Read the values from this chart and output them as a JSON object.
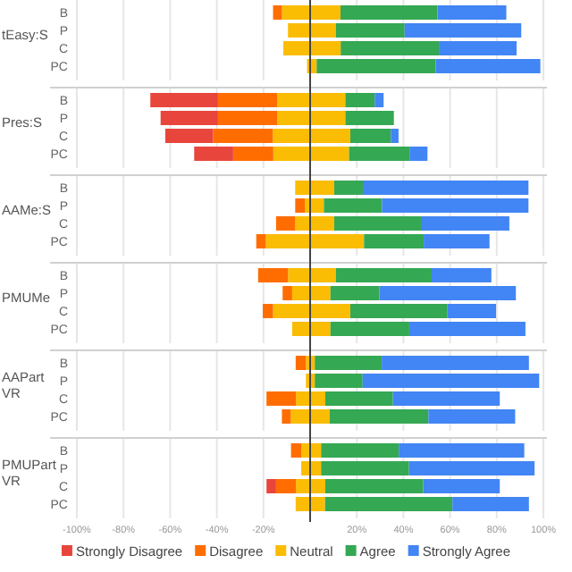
{
  "chart_data": [
    {
      "type": "bar",
      "orientation": "horizontal",
      "stacked": true,
      "ylabel": "tEasy:S",
      "categories": [
        "B",
        "P",
        "C",
        "PC"
      ],
      "xlim": [
        -100,
        100
      ],
      "grid": "x",
      "tick_labels": "y",
      "series": [
        {
          "color": "#fbbc04",
          "values": [
            -12.1,
            -9.5,
            -11.5,
            -1.3
          ]
        },
        {
          "color": "#ff6d01",
          "values": [
            -3.8,
            null,
            null,
            null
          ]
        },
        {
          "color": "#fbbc04",
          "values": [
            13,
            11,
            13.1,
            2.8
          ]
        },
        {
          "color": "#34a853",
          "values": [
            41.6,
            29.5,
            42.1,
            51
          ]
        },
        {
          "color": "#4285f4",
          "values": [
            29.5,
            50,
            33.3,
            44.9
          ]
        }
      ]
    },
    {
      "type": "bar",
      "orientation": "horizontal",
      "stacked": true,
      "ylabel": "Pres:S",
      "categories": [
        "B",
        "P",
        "C",
        "PC"
      ],
      "xlim": [
        -100,
        100
      ],
      "grid": "x",
      "tick_labels": "y",
      "series": [
        {
          "color": "#fbbc04",
          "values": [
            -14.1,
            -14.1,
            -16,
            -15.8
          ]
        },
        {
          "color": "#ff6d01",
          "values": [
            -25.4,
            -25.4,
            -25.6,
            -17.2
          ]
        },
        {
          "color": "#e8453c",
          "values": [
            -29,
            -24.6,
            -20.5,
            -16.7
          ]
        },
        {
          "color": "#fbbc04",
          "values": [
            15.1,
            15.1,
            17.2,
            16.7
          ]
        },
        {
          "color": "#34a853",
          "values": [
            12.6,
            20.8,
            17.4,
            25.9
          ]
        },
        {
          "color": "#4285f4",
          "values": [
            3.8,
            null,
            3.3,
            7.7
          ]
        }
      ]
    },
    {
      "type": "bar",
      "orientation": "horizontal",
      "stacked": true,
      "ylabel": "AAMe:S",
      "categories": [
        "B",
        "P",
        "C",
        "PC"
      ],
      "xlim": [
        -100,
        100
      ],
      "grid": "x",
      "tick_labels": "y",
      "series": [
        {
          "color": "#fbbc04",
          "values": [
            -6.4,
            -2.3,
            -6.4,
            -19
          ]
        },
        {
          "color": "#ff6d01",
          "values": [
            null,
            -4.1,
            -8.2,
            -4.1
          ]
        },
        {
          "color": "#fbbc04",
          "values": [
            10.3,
            5.9,
            10.3,
            23.1
          ]
        },
        {
          "color": "#34a853",
          "values": [
            12.3,
            24.9,
            37.2,
            25.6
          ]
        },
        {
          "color": "#4285f4",
          "values": [
            71,
            62.8,
            37.9,
            28.2
          ]
        }
      ]
    },
    {
      "type": "bar",
      "orientation": "horizontal",
      "stacked": true,
      "ylabel": "PMUMe",
      "categories": [
        "B",
        "P",
        "C",
        "PC"
      ],
      "xlim": [
        -100,
        100
      ],
      "grid": "x",
      "tick_labels": "y",
      "series": [
        {
          "color": "#fbbc04",
          "values": [
            -9.5,
            -7.7,
            -15.9,
            -7.7
          ]
        },
        {
          "color": "#ff6d01",
          "values": [
            -12.8,
            -4.1,
            -4.4,
            null
          ]
        },
        {
          "color": "#fbbc04",
          "values": [
            11,
            8.7,
            17.2,
            8.7
          ]
        },
        {
          "color": "#34a853",
          "values": [
            41.1,
            21,
            41.7,
            33.8
          ]
        },
        {
          "color": "#4285f4",
          "values": [
            25.6,
            58.5,
            20.8,
            49.8
          ]
        }
      ]
    },
    {
      "type": "bar",
      "orientation": "horizontal",
      "stacked": true,
      "ylabel": "AAPart VR",
      "categories": [
        "B",
        "P",
        "C",
        "PC"
      ],
      "xlim": [
        -100,
        100
      ],
      "grid": "x",
      "tick_labels": "y",
      "series": [
        {
          "color": "#fbbc04",
          "values": [
            -1.8,
            -1.8,
            -6.1,
            -8.3
          ]
        },
        {
          "color": "#ff6d01",
          "values": [
            -4.4,
            null,
            -12.6,
            -3.8
          ]
        },
        {
          "color": "#fbbc04",
          "values": [
            2,
            2,
            6.5,
            8.4
          ]
        },
        {
          "color": "#34a853",
          "values": [
            28.7,
            20.5,
            29,
            42.3
          ]
        },
        {
          "color": "#4285f4",
          "values": [
            63.1,
            75.7,
            45.8,
            37.2
          ]
        }
      ]
    },
    {
      "type": "bar",
      "orientation": "horizontal",
      "stacked": true,
      "ylabel": "PMUPart VR",
      "categories": [
        "B",
        "P",
        "C",
        "PC"
      ],
      "xlim": [
        -100,
        100
      ],
      "xticks": [
        {
          "value": -100,
          "label": "-100%"
        },
        {
          "value": -80,
          "label": "-80%"
        },
        {
          "value": -60,
          "label": "-60%"
        },
        {
          "value": -40,
          "label": "-40%"
        },
        {
          "value": -20,
          "label": "-20%"
        },
        {
          "value": 0,
          "label": null
        },
        {
          "value": 20,
          "label": "20%"
        },
        {
          "value": 40,
          "label": "40%"
        },
        {
          "value": 60,
          "label": "60%"
        },
        {
          "value": 80,
          "label": "80%"
        },
        {
          "value": 100,
          "label": "100%"
        }
      ],
      "grid": "x",
      "legend": "bottom",
      "series": [
        {
          "name": "Neutral",
          "color": "#fbbc04",
          "values": [
            -3.8,
            -3.8,
            -6.1,
            -6.2
          ]
        },
        {
          "name": "Disagree",
          "color": "#ff6d01",
          "values": [
            -4.4,
            null,
            -8.5,
            null
          ]
        },
        {
          "name": "Strongly Disagree",
          "color": "#e8453c",
          "values": [
            null,
            null,
            -4.1,
            null
          ]
        },
        {
          "color": "#fbbc04",
          "values": [
            4.7,
            4.7,
            6.5,
            6.4
          ]
        },
        {
          "name": "Agree",
          "color": "#34a853",
          "values": [
            33.3,
            37.7,
            42,
            54.6
          ]
        },
        {
          "name": "Strongly Agree",
          "color": "#4285f4",
          "values": [
            53.8,
            53.8,
            32.8,
            32.8
          ]
        }
      ]
    }
  ]
}
